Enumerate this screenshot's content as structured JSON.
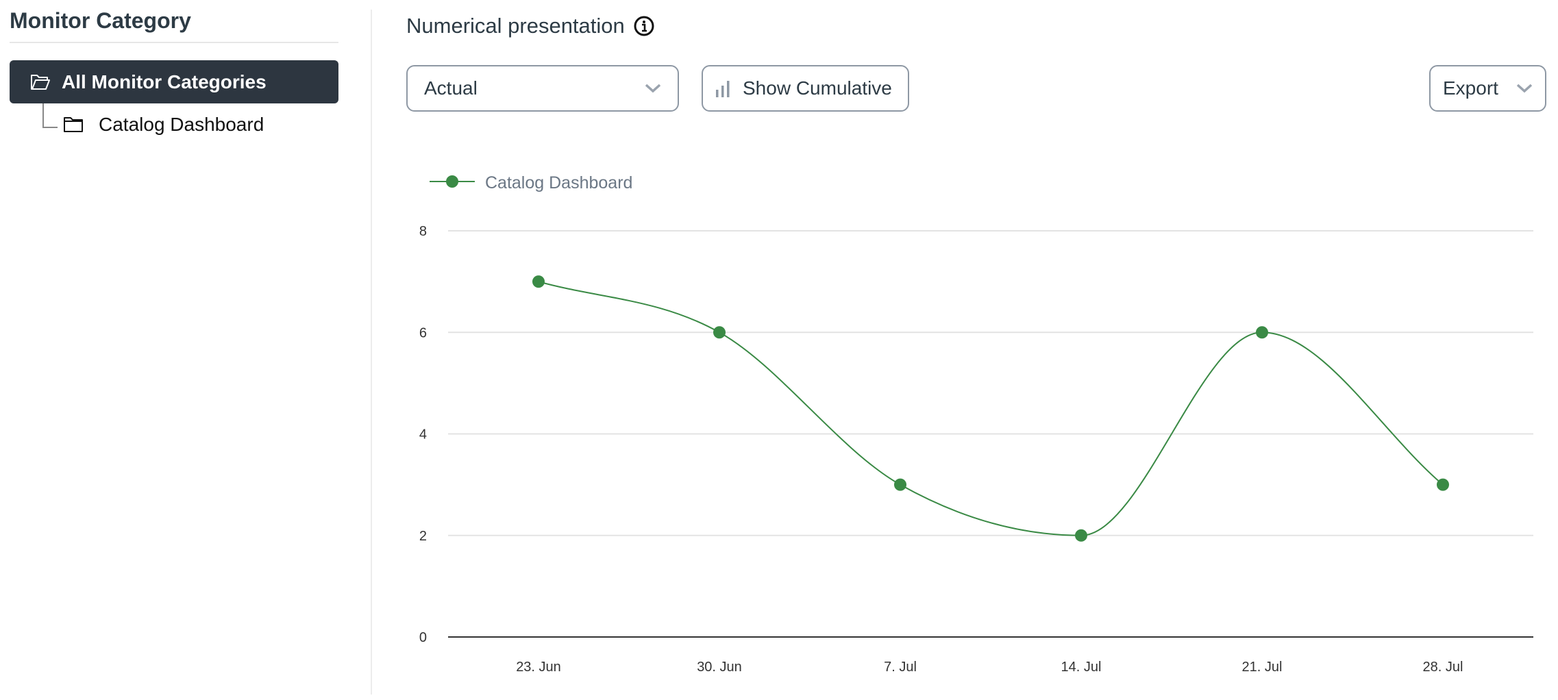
{
  "sidebar": {
    "title": "Monitor Category",
    "items": [
      {
        "label": "All Monitor Categories",
        "selected": true,
        "icon": "folder-open-icon"
      },
      {
        "label": "Catalog Dashboard",
        "selected": false,
        "icon": "folder-icon"
      }
    ]
  },
  "main": {
    "title": "Numerical presentation",
    "info_icon": "info-circle-icon",
    "view_select": {
      "value": "Actual"
    },
    "cumulative_label": "Show Cumulative",
    "export_label": "Export"
  },
  "chart_data": {
    "type": "line",
    "categories": [
      "23. Jun",
      "30. Jun",
      "7. Jul",
      "14. Jul",
      "21. Jul",
      "28. Jul"
    ],
    "series": [
      {
        "name": "Catalog Dashboard",
        "values": [
          7,
          6,
          3,
          2,
          6,
          3
        ],
        "color": "#3a8a45"
      }
    ],
    "ylim": [
      0,
      8
    ],
    "yticks": [
      "0",
      "2",
      "4",
      "6",
      "8"
    ],
    "grid": true,
    "legend": "top-left",
    "smooth": true
  }
}
